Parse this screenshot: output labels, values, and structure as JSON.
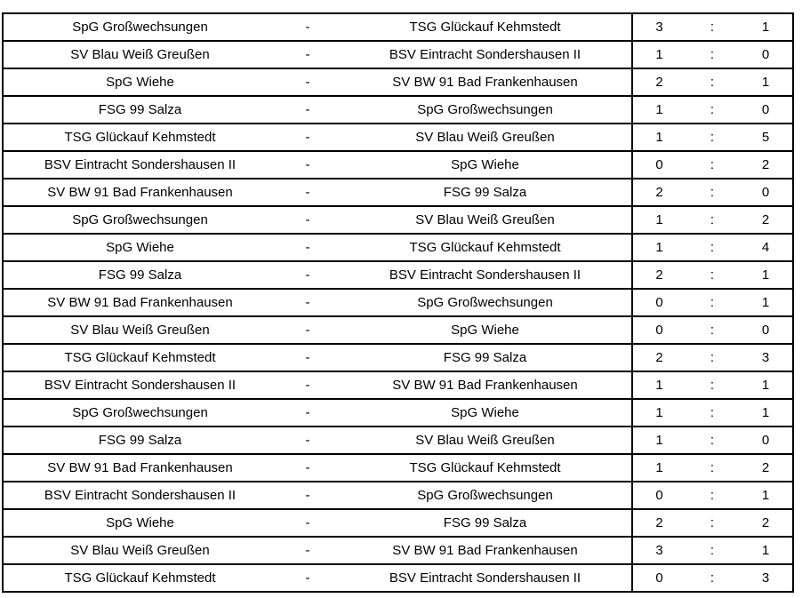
{
  "table": {
    "dash": "-",
    "colon": ":",
    "colors": {
      "border": "#000000",
      "text": "#000000",
      "background": "#ffffff"
    },
    "rows": [
      {
        "home": "SpG Großwechsungen",
        "away": "TSG Glückauf Kehmstedt",
        "score_home": "3",
        "score_away": "1"
      },
      {
        "home": "SV Blau Weiß Greußen",
        "away": "BSV Eintracht Sondershausen II",
        "score_home": "1",
        "score_away": "0"
      },
      {
        "home": "SpG Wiehe",
        "away": "SV BW 91 Bad Frankenhausen",
        "score_home": "2",
        "score_away": "1"
      },
      {
        "home": "FSG 99 Salza",
        "away": "SpG Großwechsungen",
        "score_home": "1",
        "score_away": "0"
      },
      {
        "home": "TSG Glückauf Kehmstedt",
        "away": "SV Blau Weiß Greußen",
        "score_home": "1",
        "score_away": "5"
      },
      {
        "home": "BSV Eintracht Sondershausen II",
        "away": "SpG Wiehe",
        "score_home": "0",
        "score_away": "2"
      },
      {
        "home": "SV BW 91 Bad Frankenhausen",
        "away": "FSG 99 Salza",
        "score_home": "2",
        "score_away": "0"
      },
      {
        "home": "SpG Großwechsungen",
        "away": "SV Blau Weiß Greußen",
        "score_home": "1",
        "score_away": "2"
      },
      {
        "home": "SpG Wiehe",
        "away": "TSG Glückauf Kehmstedt",
        "score_home": "1",
        "score_away": "4"
      },
      {
        "home": "FSG 99 Salza",
        "away": "BSV Eintracht Sondershausen II",
        "score_home": "2",
        "score_away": "1"
      },
      {
        "home": "SV BW 91 Bad Frankenhausen",
        "away": "SpG Großwechsungen",
        "score_home": "0",
        "score_away": "1"
      },
      {
        "home": "SV Blau Weiß Greußen",
        "away": "SpG Wiehe",
        "score_home": "0",
        "score_away": "0"
      },
      {
        "home": "TSG Glückauf Kehmstedt",
        "away": "FSG 99 Salza",
        "score_home": "2",
        "score_away": "3"
      },
      {
        "home": "BSV Eintracht Sondershausen II",
        "away": "SV BW 91 Bad Frankenhausen",
        "score_home": "1",
        "score_away": "1"
      },
      {
        "home": "SpG Großwechsungen",
        "away": "SpG Wiehe",
        "score_home": "1",
        "score_away": "1"
      },
      {
        "home": "FSG 99 Salza",
        "away": "SV Blau Weiß Greußen",
        "score_home": "1",
        "score_away": "0"
      },
      {
        "home": "SV BW 91 Bad Frankenhausen",
        "away": "TSG Glückauf Kehmstedt",
        "score_home": "1",
        "score_away": "2"
      },
      {
        "home": "BSV Eintracht Sondershausen II",
        "away": "SpG Großwechsungen",
        "score_home": "0",
        "score_away": "1"
      },
      {
        "home": "SpG Wiehe",
        "away": "FSG 99 Salza",
        "score_home": "2",
        "score_away": "2"
      },
      {
        "home": "SV Blau Weiß Greußen",
        "away": "SV BW 91 Bad Frankenhausen",
        "score_home": "3",
        "score_away": "1"
      },
      {
        "home": "TSG Glückauf Kehmstedt",
        "away": "BSV Eintracht Sondershausen II",
        "score_home": "0",
        "score_away": "3"
      }
    ]
  }
}
